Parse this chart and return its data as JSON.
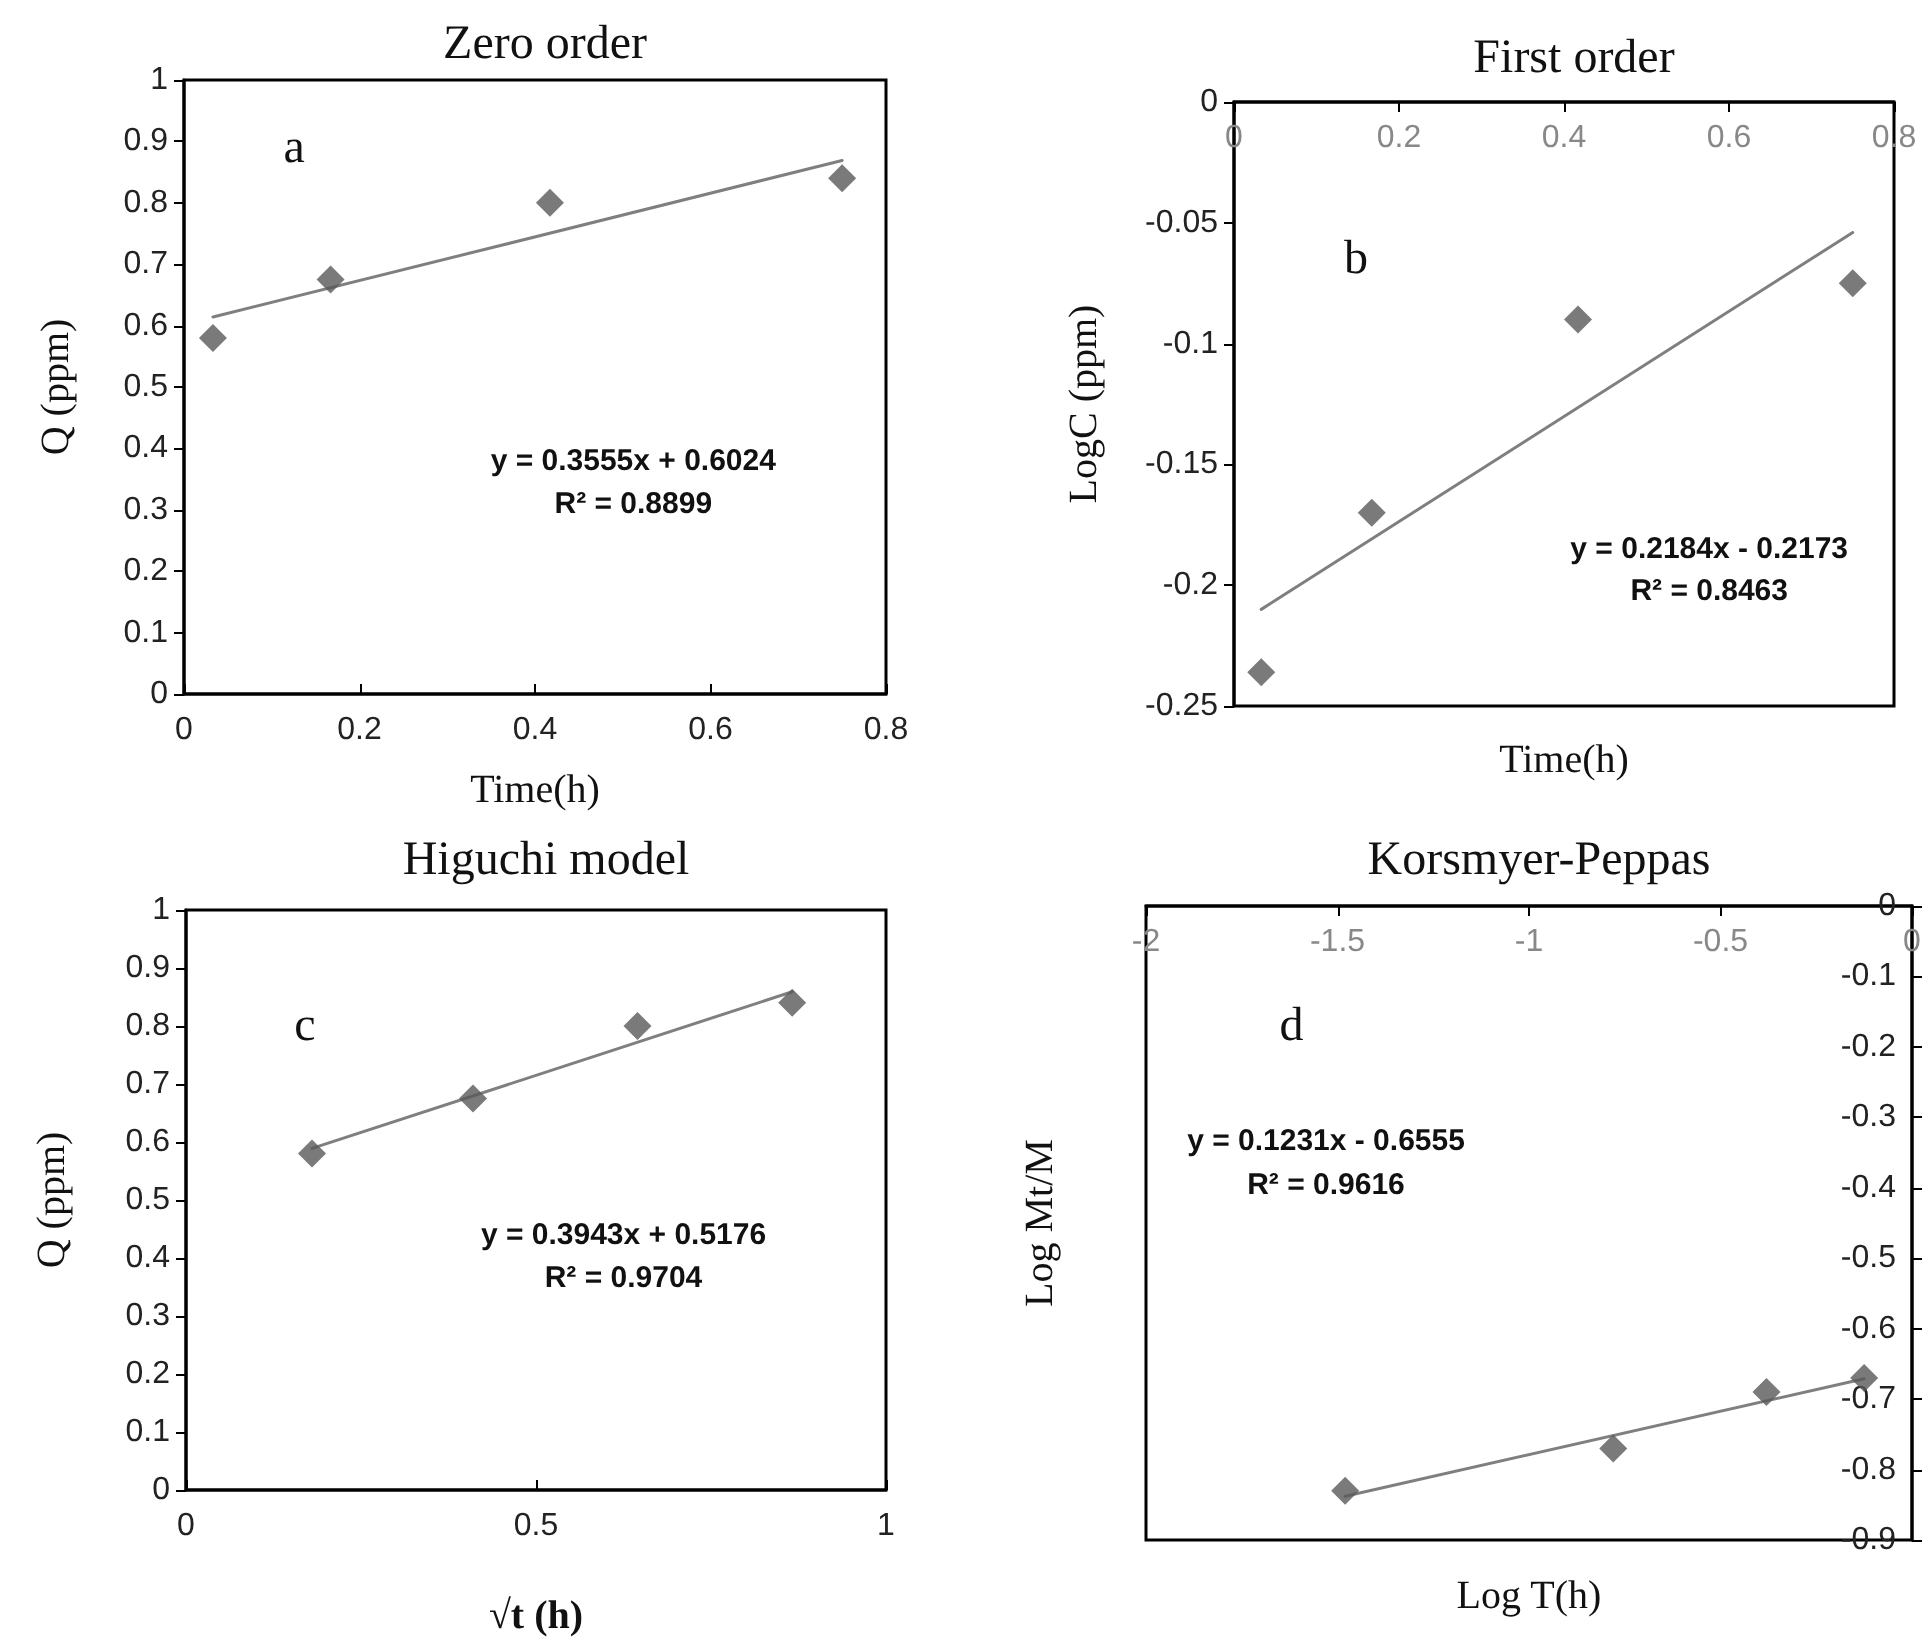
{
  "chart_data": [
    {
      "type": "scatter",
      "title": "Zero order",
      "xlabel": "Time(h)",
      "ylabel": "Q (ppm)",
      "xlim": [
        0,
        0.8
      ],
      "xticks": [
        0,
        0.2,
        0.4,
        0.6,
        0.8
      ],
      "ylim": [
        0,
        1
      ],
      "yticks": [
        0,
        0.1,
        0.2,
        0.3,
        0.4,
        0.5,
        0.6,
        0.7,
        0.8,
        0.9,
        1
      ],
      "grid": false,
      "annotations": [
        "a",
        "y = 0.3555x + 0.6024",
        "R² = 0.8899"
      ],
      "series": [
        {
          "marker": "diamond",
          "color": "#595959",
          "x": [
            0.033,
            0.167,
            0.417,
            0.75
          ],
          "values": [
            0.58,
            0.675,
            0.8,
            0.84
          ]
        },
        {
          "type": "line",
          "marker": "none",
          "color": "#7f7f7f",
          "x": [
            0.033,
            0.75
          ],
          "values": [
            0.614,
            0.869
          ]
        }
      ]
    },
    {
      "type": "scatter",
      "title": "First order",
      "xlabel": "Time(h)",
      "ylabel": "LogC (ppm)",
      "xlim": [
        0,
        0.8
      ],
      "xticks": [
        0,
        0.2,
        0.4,
        0.6,
        0.8
      ],
      "ylim": [
        -0.25,
        0
      ],
      "yticks": [
        -0.25,
        -0.2,
        -0.15,
        -0.1,
        -0.05,
        0
      ],
      "grid": false,
      "annotations": [
        "b",
        "y = 0.2184x - 0.2173",
        "R² = 0.8463"
      ],
      "series": [
        {
          "marker": "diamond",
          "color": "#595959",
          "x": [
            0.033,
            0.167,
            0.417,
            0.75
          ],
          "values": [
            -0.236,
            -0.17,
            -0.09,
            -0.075
          ]
        },
        {
          "type": "line",
          "marker": "none",
          "color": "#7f7f7f",
          "x": [
            0.033,
            0.75
          ],
          "values": [
            -0.21,
            -0.054
          ]
        }
      ]
    },
    {
      "type": "scatter",
      "title": "Higuchi model",
      "xlabel": "√t (h)",
      "ylabel": "Q (ppm)",
      "xlim": [
        0,
        1
      ],
      "xticks": [
        0,
        0.5,
        1
      ],
      "ylim": [
        0,
        1
      ],
      "yticks": [
        0,
        0.1,
        0.2,
        0.3,
        0.4,
        0.5,
        0.6,
        0.7,
        0.8,
        0.9,
        1
      ],
      "grid": false,
      "annotations": [
        "c",
        "y = 0.3943x + 0.5176",
        "R² = 0.9704"
      ],
      "series": [
        {
          "marker": "diamond",
          "color": "#595959",
          "x": [
            0.18,
            0.41,
            0.645,
            0.866
          ],
          "values": [
            0.58,
            0.675,
            0.8,
            0.84
          ]
        },
        {
          "type": "line",
          "marker": "none",
          "color": "#7f7f7f",
          "x": [
            0.18,
            0.866
          ],
          "values": [
            0.589,
            0.859
          ]
        }
      ]
    },
    {
      "type": "scatter",
      "title": "Korsmyer-Peppas",
      "xlabel": "Log T(h)",
      "ylabel": "Log Mt/M",
      "xlim": [
        -2,
        0
      ],
      "xticks": [
        -2,
        -1.5,
        -1,
        -0.5,
        0
      ],
      "ylim": [
        -0.9,
        0
      ],
      "yticks": [
        -0.9,
        -0.8,
        -0.7,
        -0.6,
        -0.5,
        -0.4,
        -0.3,
        -0.2,
        -0.1,
        0
      ],
      "grid": false,
      "annotations": [
        "d",
        "y = 0.1231x - 0.6555",
        "R² = 0.9616"
      ],
      "series": [
        {
          "marker": "diamond",
          "color": "#595959",
          "x": [
            -1.48,
            -0.78,
            -0.38,
            -0.125
          ],
          "values": [
            -0.83,
            -0.77,
            -0.69,
            -0.67
          ]
        },
        {
          "type": "line",
          "marker": "none",
          "color": "#7f7f7f",
          "x": [
            -1.48,
            -0.125
          ],
          "values": [
            -0.838,
            -0.671
          ]
        }
      ]
    }
  ]
}
